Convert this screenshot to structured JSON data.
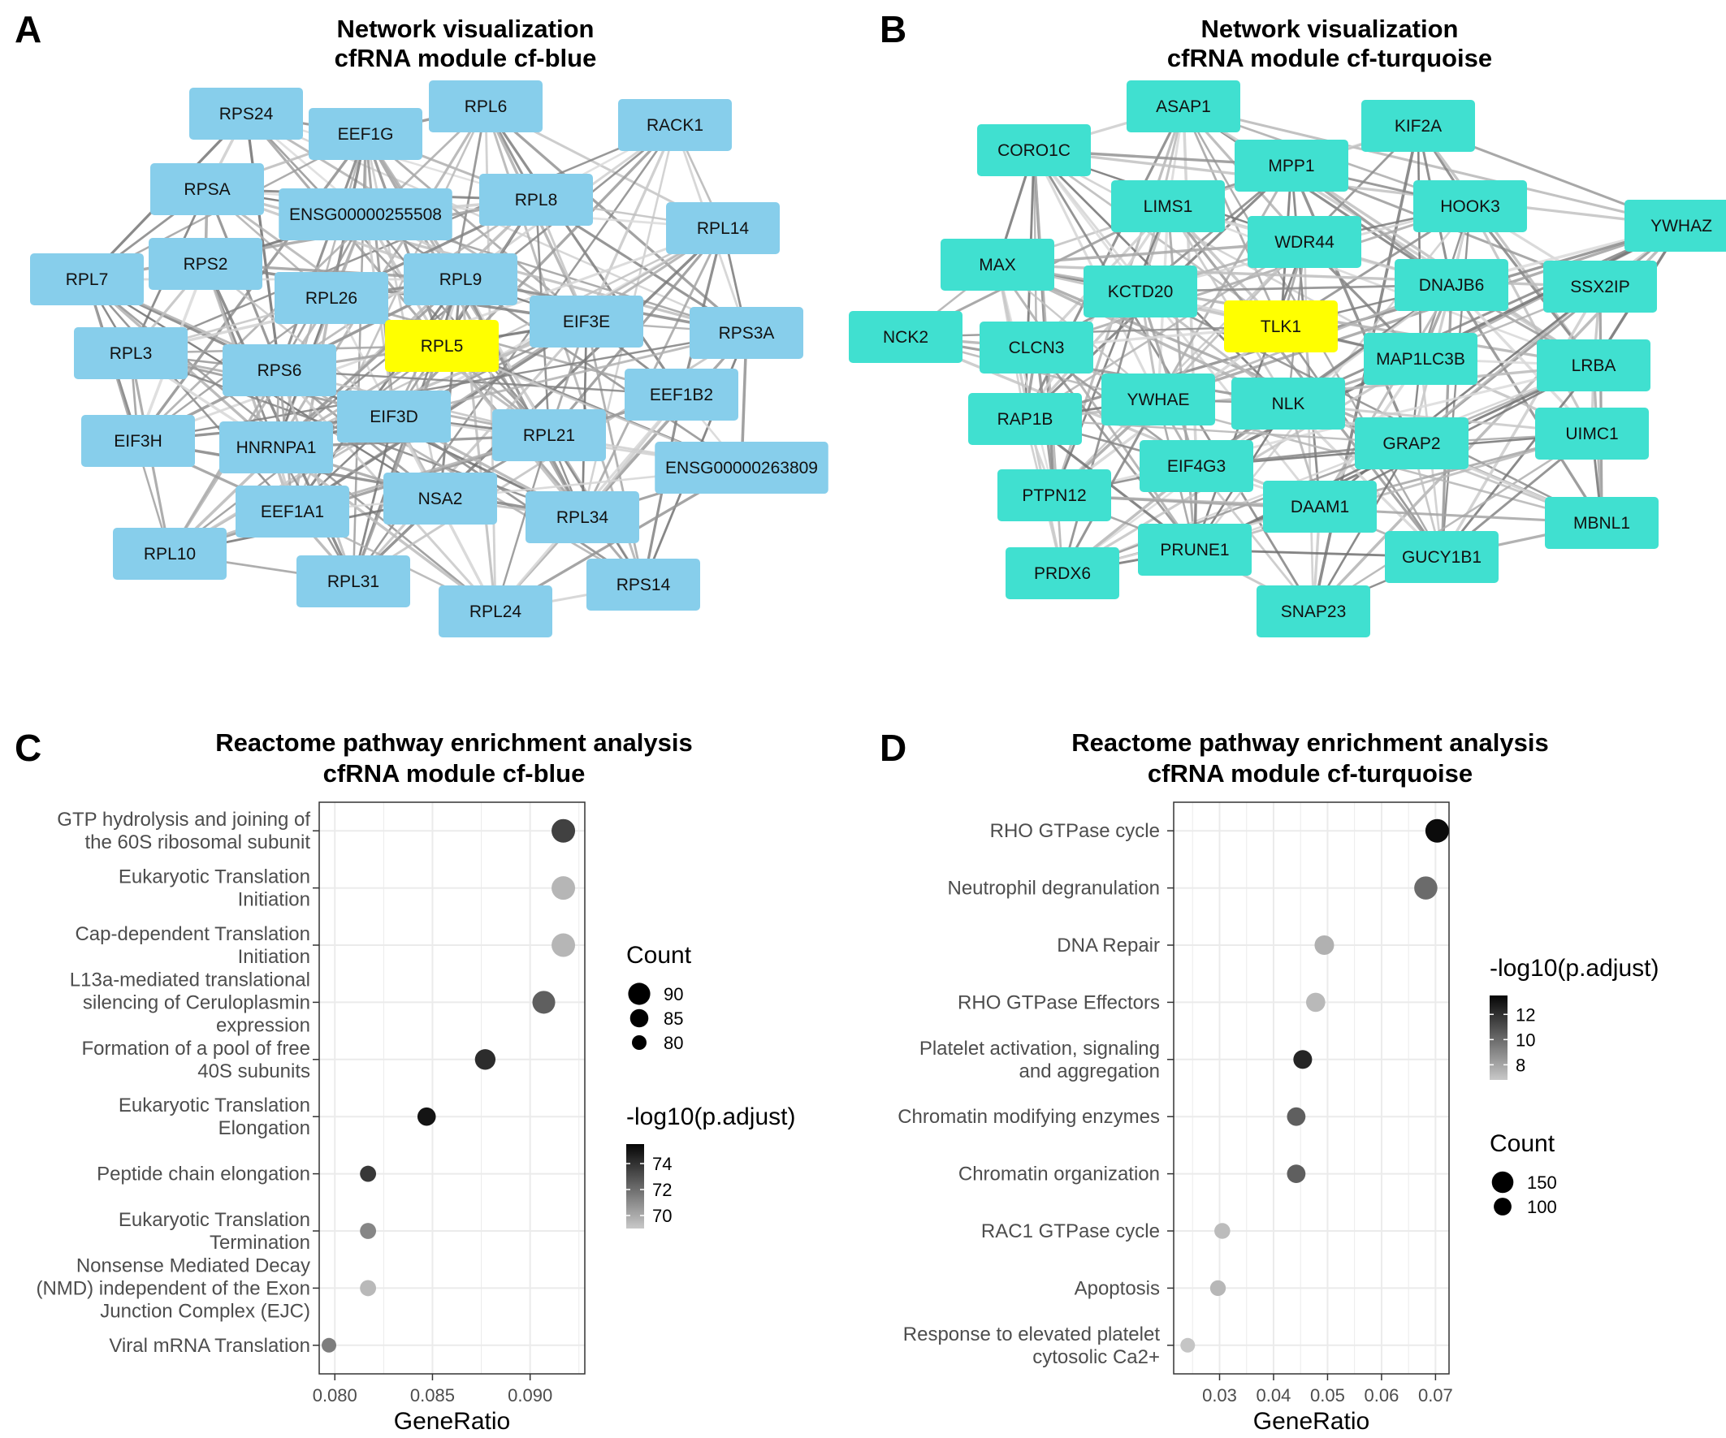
{
  "panels": {
    "A": {
      "letter": "A",
      "title_line1": "Network visualization",
      "title_line2": "cfRNA module cf-blue"
    },
    "B": {
      "letter": "B",
      "title_line1": "Network visualization",
      "title_line2": "cfRNA module cf-turquoise"
    },
    "C": {
      "letter": "C",
      "title_line1": "Reactome pathway enrichment analysis",
      "title_line2": "cfRNA module cf-blue"
    },
    "D": {
      "letter": "D",
      "title_line1": "Reactome pathway enrichment analysis",
      "title_line2": "cfRNA module cf-turquoise"
    }
  },
  "colors": {
    "blue_node": "#87ceeb",
    "turquoise_node": "#40e0d0",
    "hub_node": "#ffff00",
    "edge": "#808080",
    "grid": "#ebebeb"
  },
  "networks": [
    {
      "id": "blue",
      "hub": "RPL5",
      "nodes": [
        "RPS24",
        "EEF1G",
        "RPL6",
        "RACK1",
        "RPSA",
        "ENSG00000255508",
        "RPL8",
        "RPL14",
        "RPL7",
        "RPS2",
        "RPL26",
        "RPL9",
        "EIF3E",
        "RPS3A",
        "RPL3",
        "RPS6",
        "RPL5",
        "EEF1B2",
        "EIF3D",
        "EIF3H",
        "HNRNPA1",
        "RPL21",
        "ENSG00000263809",
        "EEF1A1",
        "NSA2",
        "RPL34",
        "RPL10",
        "RPL31",
        "RPL24",
        "RPS14"
      ]
    },
    {
      "id": "turquoise",
      "hub": "TLK1",
      "nodes": [
        "ASAP1",
        "KIF2A",
        "CORO1C",
        "MPP1",
        "LIMS1",
        "HOOK3",
        "YWHAZ",
        "WDR44",
        "MAX",
        "KCTD20",
        "DNAJB6",
        "SSX2IP",
        "TLK1",
        "NCK2",
        "CLCN3",
        "MAP1LC3B",
        "LRBA",
        "YWHAE",
        "NLK",
        "RAP1B",
        "UIMC1",
        "GRAP2",
        "EIF4G3",
        "PTPN12",
        "DAAM1",
        "MBNL1",
        "PRUNE1",
        "PRDX6",
        "GUCY1B1",
        "SNAP23"
      ]
    }
  ],
  "chart_data": [
    {
      "type": "scatter",
      "title": "Reactome pathway enrichment analysis cfRNA module cf-blue",
      "xlabel": "GeneRatio",
      "ylabel": "",
      "xlim": [
        0.0792,
        0.0928
      ],
      "xticks": [
        "0.080",
        "0.085",
        "0.090"
      ],
      "categories": [
        "GTP hydrolysis and joining of\nthe 60S ribosomal subunit",
        "Eukaryotic Translation\nInitiation",
        "Cap-dependent Translation\nInitiation",
        "L13a-mediated translational\nsilencing of Ceruloplasmin\nexpression",
        "Formation of a pool of free\n40S subunits",
        "Eukaryotic Translation\nElongation",
        "Peptide chain elongation",
        "Eukaryotic Translation\nTermination",
        "Nonsense Mediated Decay\n(NMD) independent of the Exon\nJunction Complex (EJC)",
        "Viral mRNA Translation"
      ],
      "points": [
        {
          "x": 0.0917,
          "count": 92,
          "log10padj": 73.5
        },
        {
          "x": 0.0917,
          "count": 92,
          "log10padj": 69.6
        },
        {
          "x": 0.0917,
          "count": 92,
          "log10padj": 69.6
        },
        {
          "x": 0.0907,
          "count": 91,
          "log10padj": 72.5
        },
        {
          "x": 0.0877,
          "count": 88,
          "log10padj": 74.2
        },
        {
          "x": 0.0847,
          "count": 85,
          "log10padj": 75.0
        },
        {
          "x": 0.0817,
          "count": 82,
          "log10padj": 73.8
        },
        {
          "x": 0.0817,
          "count": 82,
          "log10padj": 71.2
        },
        {
          "x": 0.0817,
          "count": 82,
          "log10padj": 69.5
        },
        {
          "x": 0.0797,
          "count": 80,
          "log10padj": 71.5
        }
      ],
      "legend_size": {
        "title": "Count",
        "entries": [
          90,
          85,
          80
        ]
      },
      "legend_color": {
        "title": "-log10(p.adjust)",
        "ticks": [
          74,
          72,
          70
        ],
        "range": [
          69,
          75.5
        ]
      },
      "size_range": [
        80,
        92
      ],
      "grid": true,
      "legend_position": "right"
    },
    {
      "type": "scatter",
      "title": "Reactome pathway enrichment analysis cfRNA module cf-turquoise",
      "xlabel": "GeneRatio",
      "ylabel": "",
      "xlim": [
        0.0215,
        0.0725
      ],
      "xticks": [
        "0.03",
        "0.04",
        "0.05",
        "0.06",
        "0.07"
      ],
      "categories": [
        "RHO GTPase cycle",
        "Neutrophil degranulation",
        "DNA Repair",
        "RHO GTPase Effectors",
        "Platelet activation, signaling\nand aggregation",
        "Chromatin modifying enzymes",
        "Chromatin organization",
        "RAC1 GTPase cycle",
        "Apoptosis",
        "Response to elevated platelet\ncytosolic Ca2+"
      ],
      "points": [
        {
          "x": 0.0703,
          "count": 175,
          "log10padj": 13.3
        },
        {
          "x": 0.0682,
          "count": 170,
          "log10padj": 10.0
        },
        {
          "x": 0.0494,
          "count": 123,
          "log10padj": 7.6
        },
        {
          "x": 0.0478,
          "count": 119,
          "log10padj": 7.3
        },
        {
          "x": 0.0454,
          "count": 113,
          "log10padj": 12.4
        },
        {
          "x": 0.0442,
          "count": 110,
          "log10padj": 10.4
        },
        {
          "x": 0.0442,
          "count": 110,
          "log10padj": 10.4
        },
        {
          "x": 0.0305,
          "count": 76,
          "log10padj": 7.2
        },
        {
          "x": 0.0297,
          "count": 74,
          "log10padj": 7.4
        },
        {
          "x": 0.0241,
          "count": 60,
          "log10padj": 6.9
        }
      ],
      "legend_size": {
        "title": "Count",
        "entries": [
          150,
          100
        ]
      },
      "legend_color": {
        "title": "-log10(p.adjust)",
        "ticks": [
          12,
          10,
          8
        ],
        "range": [
          6.8,
          13.5
        ]
      },
      "size_range": [
        60,
        175
      ],
      "grid": true,
      "legend_position": "right"
    }
  ]
}
